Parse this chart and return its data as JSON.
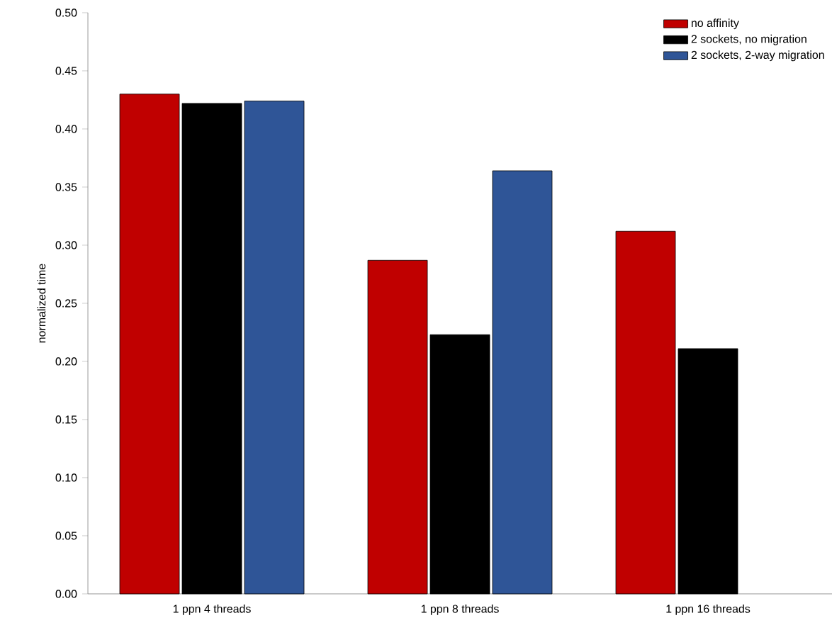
{
  "chart_data": {
    "type": "bar",
    "ylabel": "normalized time",
    "categories": [
      "1 ppn 4 threads",
      "1 ppn 8 threads",
      "1 ppn 16 threads"
    ],
    "series": [
      {
        "name": "no affinity",
        "color": "#c00000",
        "values": [
          0.43,
          0.287,
          0.312
        ]
      },
      {
        "name": "2 sockets, no migration",
        "color": "#000000",
        "values": [
          0.422,
          0.223,
          0.211
        ]
      },
      {
        "name": "2 sockets, 2-way migration",
        "color": "#2f5597",
        "values": [
          0.424,
          0.364,
          null
        ]
      }
    ],
    "ylim": [
      0,
      0.5
    ],
    "yticks": [
      {
        "value": 0,
        "label": "0.00"
      },
      {
        "value": 0.05,
        "label": "0.05"
      },
      {
        "value": 0.1,
        "label": "0.10"
      },
      {
        "value": 0.15,
        "label": "0.15"
      },
      {
        "value": 0.2,
        "label": "0.20"
      },
      {
        "value": 0.25,
        "label": "0.25"
      },
      {
        "value": 0.3,
        "label": "0.30"
      },
      {
        "value": 0.35,
        "label": "0.35"
      },
      {
        "value": 0.4,
        "label": "0.40"
      },
      {
        "value": 0.45,
        "label": "0.45"
      },
      {
        "value": 0.5,
        "label": "0.50"
      }
    ],
    "grid": false,
    "legend": "top right"
  }
}
